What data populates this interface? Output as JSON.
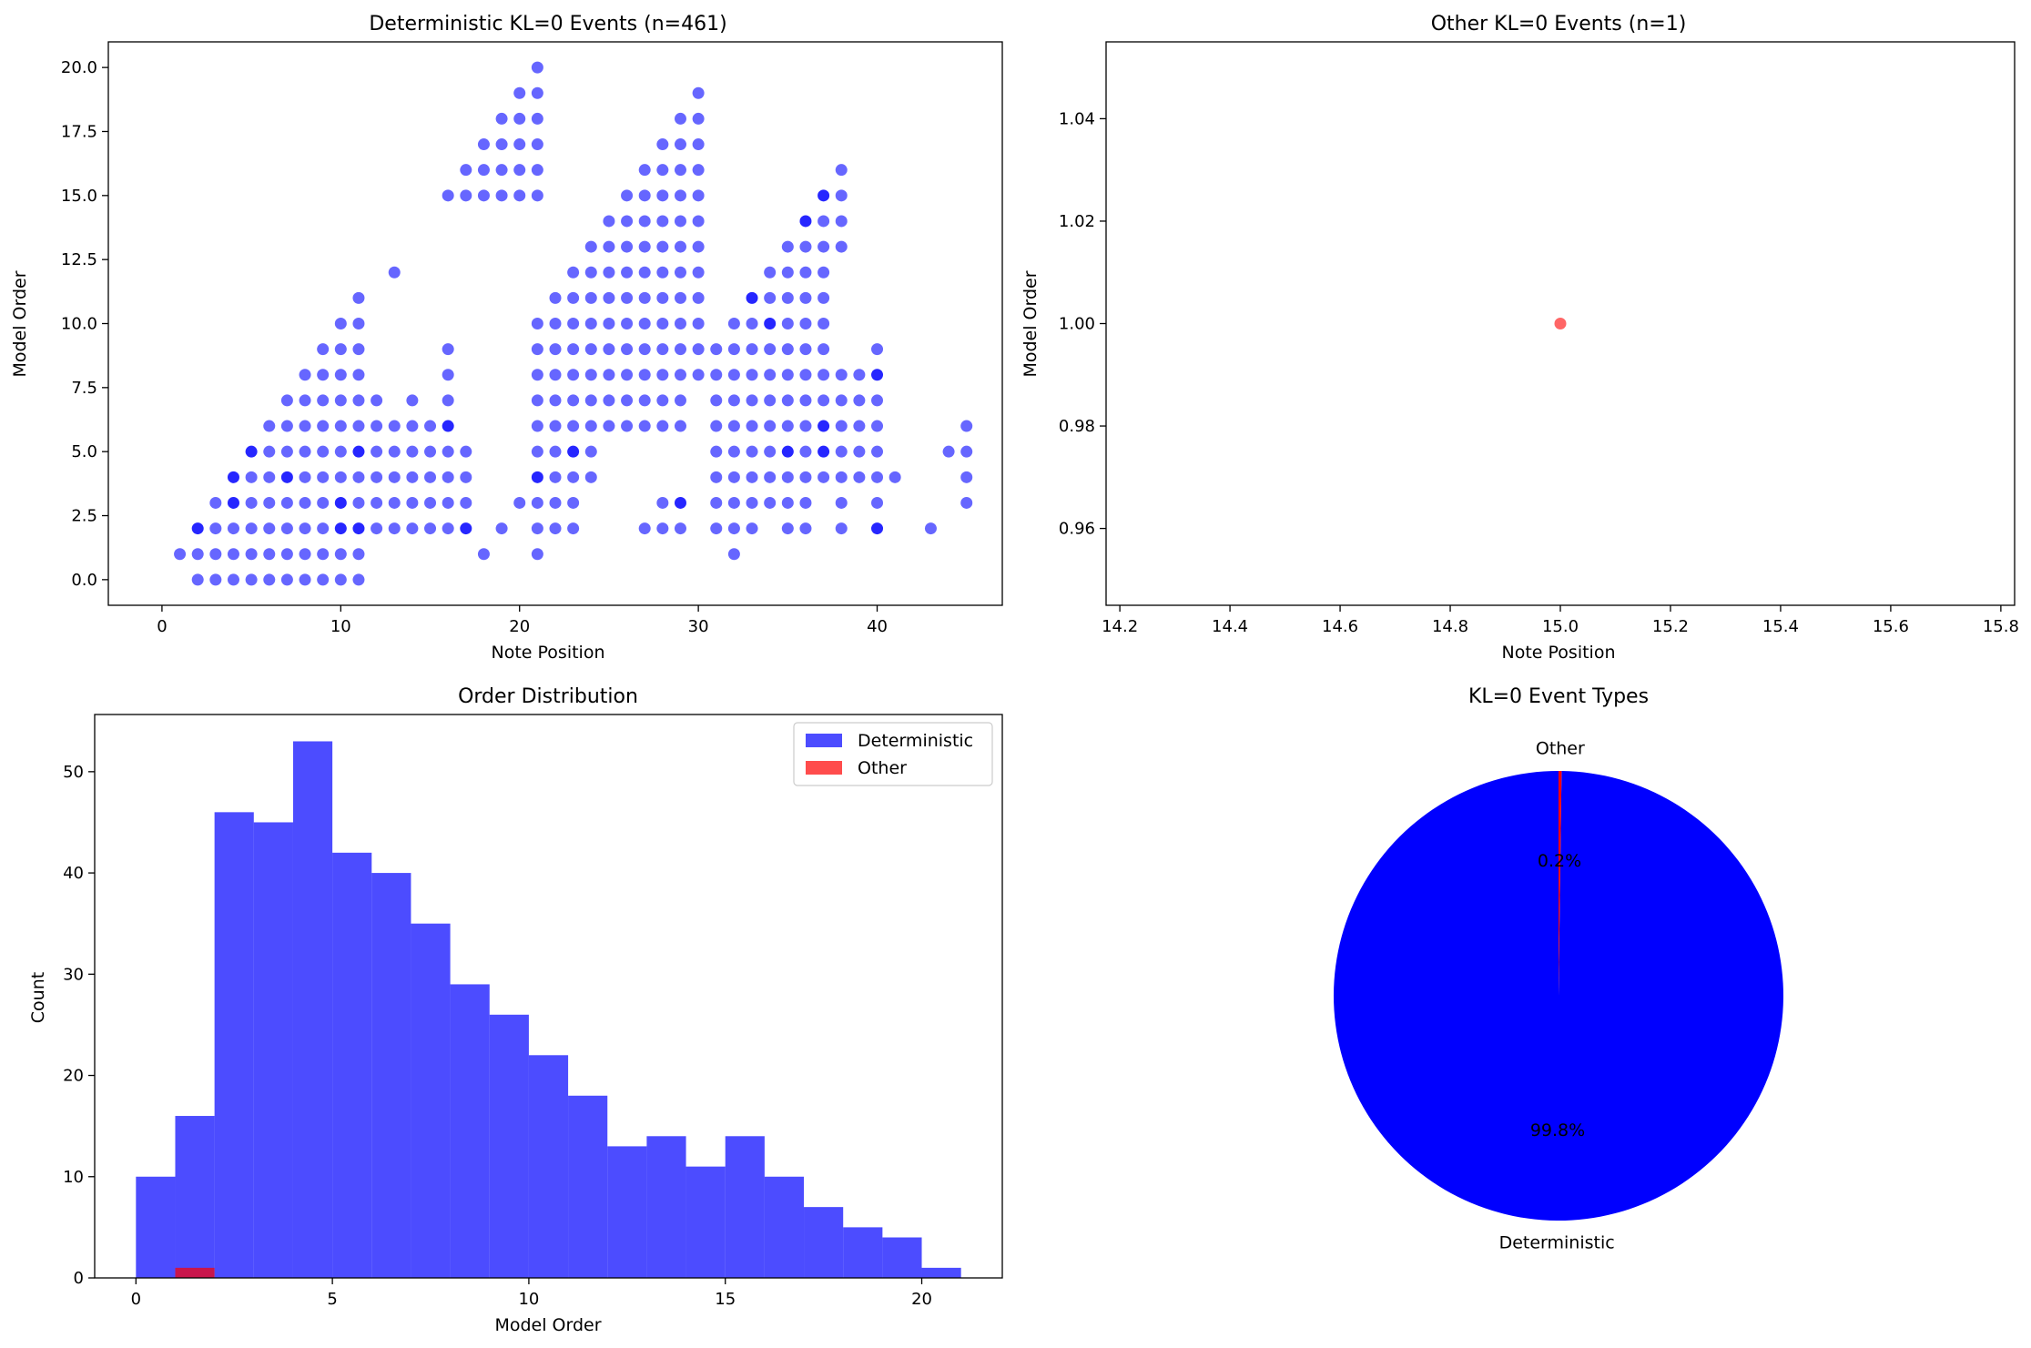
{
  "colors": {
    "deterministic": "#0000ff",
    "other": "#ff0000",
    "axis": "#000000",
    "background": "#ffffff"
  },
  "chart_data": [
    {
      "type": "scatter",
      "title": "Deterministic KL=0 Events (n=461)",
      "xlabel": "Note Position",
      "ylabel": "Model Order",
      "xlim": [
        -3,
        47
      ],
      "ylim": [
        -1,
        21
      ],
      "xticks": [
        0,
        10,
        20,
        30,
        40
      ],
      "yticks": [
        0.0,
        2.5,
        5.0,
        7.5,
        10.0,
        12.5,
        15.0,
        17.5,
        20.0
      ],
      "ytick_labels": [
        "0.0",
        "2.5",
        "5.0",
        "7.5",
        "10.0",
        "12.5",
        "15.0",
        "17.5",
        "20.0"
      ],
      "color": "#0000ff",
      "alpha": 0.6,
      "columns": [
        {
          "x": 1,
          "y": [
            1
          ]
        },
        {
          "x": 2,
          "y": [
            0,
            1,
            2
          ]
        },
        {
          "x": 3,
          "y": [
            0,
            1,
            2,
            3
          ]
        },
        {
          "x": 4,
          "y": [
            0,
            1,
            2,
            3,
            4
          ]
        },
        {
          "x": 5,
          "y": [
            0,
            1,
            2,
            3,
            4,
            5
          ]
        },
        {
          "x": 6,
          "y": [
            0,
            1,
            2,
            3,
            4,
            5,
            6
          ]
        },
        {
          "x": 7,
          "y": [
            0,
            1,
            2,
            3,
            4,
            5,
            6,
            7
          ]
        },
        {
          "x": 8,
          "y": [
            0,
            1,
            2,
            3,
            4,
            5,
            6,
            7,
            8
          ]
        },
        {
          "x": 9,
          "y": [
            0,
            1,
            2,
            3,
            4,
            5,
            6,
            7,
            8,
            9
          ]
        },
        {
          "x": 10,
          "y": [
            0,
            1,
            2,
            3,
            4,
            5,
            6,
            7,
            8,
            9,
            10
          ]
        },
        {
          "x": 11,
          "y": [
            0,
            1,
            2,
            3,
            4,
            5,
            6,
            7,
            8,
            9,
            10,
            11
          ]
        },
        {
          "x": 12,
          "y": [
            2,
            3,
            4,
            5,
            6,
            7
          ]
        },
        {
          "x": 13,
          "y": [
            2,
            3,
            4,
            5,
            6,
            12
          ]
        },
        {
          "x": 14,
          "y": [
            2,
            3,
            4,
            5,
            6,
            7
          ]
        },
        {
          "x": 15,
          "y": [
            2,
            3,
            4,
            5,
            6
          ]
        },
        {
          "x": 16,
          "y": [
            2,
            3,
            4,
            5,
            6,
            7,
            8,
            9,
            15
          ]
        },
        {
          "x": 17,
          "y": [
            2,
            3,
            4,
            5,
            15,
            16
          ]
        },
        {
          "x": 18,
          "y": [
            1,
            15,
            16,
            17
          ]
        },
        {
          "x": 19,
          "y": [
            2,
            15,
            16,
            17,
            18
          ]
        },
        {
          "x": 20,
          "y": [
            3,
            15,
            16,
            17,
            18,
            19
          ]
        },
        {
          "x": 21,
          "y": [
            1,
            2,
            3,
            4,
            5,
            6,
            7,
            8,
            9,
            10,
            15,
            16,
            17,
            18,
            19,
            20
          ]
        },
        {
          "x": 22,
          "y": [
            2,
            3,
            4,
            5,
            6,
            7,
            8,
            9,
            10,
            11
          ]
        },
        {
          "x": 23,
          "y": [
            2,
            3,
            4,
            5,
            6,
            7,
            8,
            9,
            10,
            11,
            12
          ]
        },
        {
          "x": 24,
          "y": [
            4,
            5,
            6,
            7,
            8,
            9,
            10,
            11,
            12,
            13
          ]
        },
        {
          "x": 25,
          "y": [
            6,
            7,
            8,
            9,
            10,
            11,
            12,
            13,
            14
          ]
        },
        {
          "x": 26,
          "y": [
            6,
            7,
            8,
            9,
            10,
            11,
            12,
            13,
            14,
            15
          ]
        },
        {
          "x": 27,
          "y": [
            2,
            6,
            7,
            8,
            9,
            10,
            11,
            12,
            13,
            14,
            15,
            16
          ]
        },
        {
          "x": 28,
          "y": [
            2,
            3,
            6,
            7,
            8,
            9,
            10,
            11,
            12,
            13,
            14,
            15,
            16,
            17
          ]
        },
        {
          "x": 29,
          "y": [
            2,
            3,
            6,
            7,
            8,
            9,
            10,
            11,
            12,
            13,
            14,
            15,
            16,
            17,
            18
          ]
        },
        {
          "x": 30,
          "y": [
            8,
            9,
            10,
            11,
            12,
            13,
            14,
            15,
            16,
            17,
            18,
            19
          ]
        },
        {
          "x": 31,
          "y": [
            2,
            3,
            4,
            5,
            6,
            7,
            8,
            9
          ]
        },
        {
          "x": 32,
          "y": [
            1,
            2,
            3,
            4,
            5,
            6,
            7,
            8,
            9,
            10
          ]
        },
        {
          "x": 33,
          "y": [
            2,
            3,
            4,
            5,
            6,
            7,
            8,
            9,
            10,
            11
          ]
        },
        {
          "x": 34,
          "y": [
            3,
            4,
            5,
            6,
            7,
            8,
            9,
            10,
            11,
            12
          ]
        },
        {
          "x": 35,
          "y": [
            2,
            3,
            4,
            5,
            6,
            7,
            8,
            9,
            10,
            11,
            12,
            13
          ]
        },
        {
          "x": 36,
          "y": [
            2,
            3,
            4,
            5,
            6,
            7,
            8,
            9,
            10,
            11,
            12,
            13,
            14
          ]
        },
        {
          "x": 37,
          "y": [
            4,
            5,
            6,
            7,
            8,
            9,
            10,
            11,
            12,
            13,
            14,
            15
          ]
        },
        {
          "x": 38,
          "y": [
            2,
            3,
            4,
            5,
            6,
            7,
            8,
            13,
            14,
            15,
            16
          ]
        },
        {
          "x": 39,
          "y": [
            4,
            5,
            6,
            7,
            8
          ]
        },
        {
          "x": 40,
          "y": [
            2,
            3,
            4,
            5,
            6,
            7,
            8,
            9
          ]
        },
        {
          "x": 41,
          "y": [
            4
          ]
        },
        {
          "x": 43,
          "y": [
            2
          ]
        },
        {
          "x": 44,
          "y": [
            5
          ]
        },
        {
          "x": 45,
          "y": [
            3,
            4,
            5,
            6
          ]
        }
      ],
      "dense_points": [
        [
          2,
          2
        ],
        [
          4,
          3
        ],
        [
          4,
          4
        ],
        [
          5,
          5
        ],
        [
          7,
          4
        ],
        [
          10,
          3
        ],
        [
          10,
          2
        ],
        [
          11,
          2
        ],
        [
          11,
          5
        ],
        [
          16,
          6
        ],
        [
          17,
          2
        ],
        [
          21,
          4
        ],
        [
          23,
          5
        ],
        [
          27,
          4
        ],
        [
          29,
          3
        ],
        [
          33,
          11
        ],
        [
          34,
          10
        ],
        [
          35,
          5
        ],
        [
          36,
          14
        ],
        [
          37,
          15
        ],
        [
          37,
          6
        ],
        [
          37,
          5
        ],
        [
          40,
          2
        ],
        [
          40,
          8
        ]
      ]
    },
    {
      "type": "scatter",
      "title": "Other KL=0 Events (n=1)",
      "xlabel": "Note Position",
      "ylabel": "Model Order",
      "xlim": [
        14.175,
        15.825
      ],
      "ylim": [
        0.945,
        1.055
      ],
      "xticks": [
        14.2,
        14.4,
        14.6,
        14.8,
        15.0,
        15.2,
        15.4,
        15.6,
        15.8
      ],
      "xtick_labels": [
        "14.2",
        "14.4",
        "14.6",
        "14.8",
        "15.0",
        "15.2",
        "15.4",
        "15.6",
        "15.8"
      ],
      "yticks": [
        0.96,
        0.98,
        1.0,
        1.02,
        1.04
      ],
      "ytick_labels": [
        "0.96",
        "0.98",
        "1.00",
        "1.02",
        "1.04"
      ],
      "color": "#ff0000",
      "alpha": 0.6,
      "points": [
        {
          "x": 15,
          "y": 1
        }
      ]
    },
    {
      "type": "bar",
      "title": "Order Distribution",
      "xlabel": "Model Order",
      "ylabel": "Count",
      "xlim": [
        -1.05,
        22.05
      ],
      "ylim": [
        0,
        55.65
      ],
      "xticks": [
        0,
        5,
        10,
        15,
        20
      ],
      "yticks": [
        0,
        10,
        20,
        30,
        40,
        50
      ],
      "series": [
        {
          "name": "Deterministic",
          "color": "#0000ff",
          "alpha": 0.7,
          "bin_edges": [
            0,
            1,
            2,
            3,
            4,
            5,
            6,
            7,
            8,
            9,
            10,
            11,
            12,
            13,
            14,
            15,
            16,
            17,
            18,
            19,
            20,
            21
          ],
          "values": [
            10,
            16,
            46,
            45,
            53,
            42,
            40,
            35,
            29,
            26,
            22,
            18,
            13,
            14,
            11,
            14,
            10,
            7,
            5,
            4,
            1
          ]
        },
        {
          "name": "Other",
          "color": "#ff0000",
          "alpha": 0.7,
          "bin_edges": [
            1,
            2
          ],
          "values": [
            1
          ]
        }
      ],
      "legend": "top-right"
    },
    {
      "type": "pie",
      "title": "KL=0 Event Types",
      "labels": [
        "Deterministic",
        "Other"
      ],
      "values": [
        461,
        1
      ],
      "percent_labels": [
        "99.8%",
        "0.2%"
      ],
      "colors": [
        "#0000ff",
        "#ff0000"
      ],
      "startangle": 90
    }
  ]
}
